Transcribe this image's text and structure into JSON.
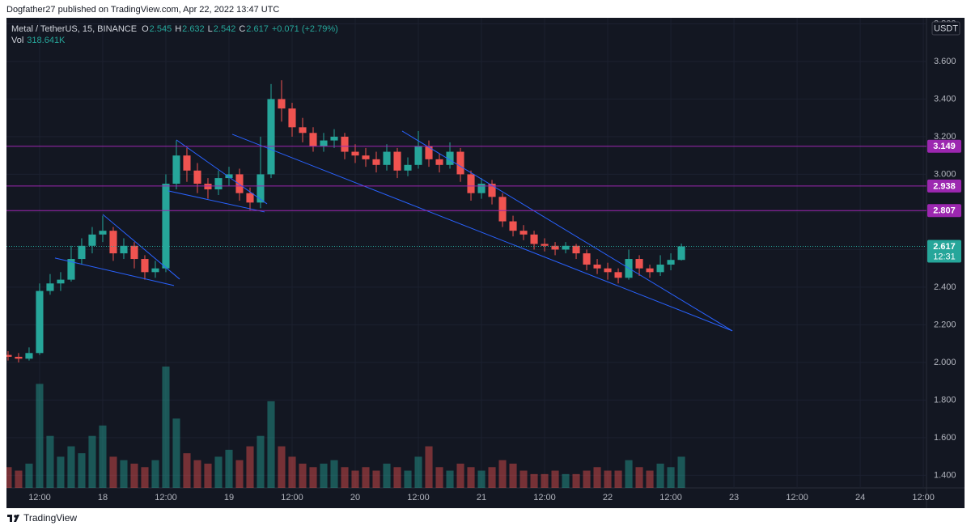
{
  "header": {
    "published": "Dogfather27 published on TradingView.com, Apr 22, 2022 13:47 UTC"
  },
  "footer": {
    "brand": "TradingView"
  },
  "chart_data": {
    "type": "candlestick",
    "symbol": "Metal / TetherUS, 15, BINANCE",
    "legend": {
      "labels": [
        "O",
        "H",
        "L",
        "C"
      ],
      "values": [
        2.545,
        2.632,
        2.542,
        2.617
      ],
      "change": "+0.071 (+2.79%)"
    },
    "volume_label": "Vol",
    "volume_value": "318.641K",
    "currency": "USDT",
    "x": [
      6,
      8,
      10,
      12,
      14,
      16,
      18,
      20,
      22,
      24,
      26,
      28,
      30,
      32,
      34,
      36,
      38,
      40,
      42,
      44,
      46,
      48,
      50,
      52,
      54,
      56,
      58,
      60,
      62,
      64,
      66,
      68,
      70,
      72,
      74,
      76,
      78,
      80,
      82,
      84,
      86,
      88,
      90,
      92,
      94,
      96,
      98,
      100,
      102,
      104,
      106,
      108,
      110,
      112,
      114,
      116,
      118,
      120,
      122,
      124,
      126,
      128,
      130,
      132,
      134
    ],
    "open": [
      2.04,
      2.03,
      2.02,
      2.05,
      2.38,
      2.42,
      2.44,
      2.55,
      2.62,
      2.68,
      2.7,
      2.58,
      2.62,
      2.55,
      2.48,
      2.5,
      2.95,
      3.1,
      3.02,
      2.95,
      2.92,
      2.98,
      3.0,
      2.9,
      2.85,
      3.0,
      3.4,
      3.35,
      3.25,
      3.22,
      3.15,
      3.18,
      3.2,
      3.12,
      3.1,
      3.08,
      3.05,
      3.12,
      3.02,
      3.05,
      3.15,
      3.08,
      3.05,
      3.12,
      3.0,
      2.9,
      2.95,
      2.88,
      2.75,
      2.7,
      2.68,
      2.63,
      2.62,
      2.6,
      2.62,
      2.58,
      2.52,
      2.5,
      2.48,
      2.45,
      2.55,
      2.5,
      2.48,
      2.52,
      2.545
    ],
    "high": [
      2.06,
      2.05,
      2.08,
      2.42,
      2.47,
      2.48,
      2.62,
      2.66,
      2.72,
      2.78,
      2.72,
      2.66,
      2.64,
      2.57,
      2.54,
      3.0,
      3.18,
      3.14,
      3.06,
      2.98,
      3.02,
      3.04,
      3.03,
      2.93,
      3.2,
      3.48,
      3.5,
      3.38,
      3.3,
      3.25,
      3.22,
      3.24,
      3.22,
      3.16,
      3.14,
      3.12,
      3.16,
      3.14,
      3.09,
      3.23,
      3.18,
      3.11,
      3.17,
      3.14,
      3.02,
      2.98,
      2.97,
      2.9,
      2.78,
      2.73,
      2.7,
      2.66,
      2.64,
      2.64,
      2.63,
      2.6,
      2.55,
      2.53,
      2.5,
      2.6,
      2.57,
      2.52,
      2.57,
      2.58,
      2.632
    ],
    "low": [
      2.01,
      2.0,
      2.01,
      2.04,
      2.36,
      2.38,
      2.43,
      2.52,
      2.58,
      2.64,
      2.54,
      2.55,
      2.5,
      2.44,
      2.45,
      2.48,
      2.92,
      2.96,
      2.9,
      2.87,
      2.89,
      2.94,
      2.86,
      2.81,
      2.82,
      2.98,
      3.28,
      3.2,
      3.17,
      3.12,
      3.12,
      3.14,
      3.08,
      3.06,
      3.04,
      3.01,
      3.02,
      2.98,
      2.99,
      3.03,
      3.04,
      3.01,
      3.03,
      2.96,
      2.86,
      2.87,
      2.84,
      2.72,
      2.67,
      2.65,
      2.6,
      2.59,
      2.57,
      2.58,
      2.55,
      2.49,
      2.47,
      2.44,
      2.42,
      2.44,
      2.46,
      2.45,
      2.46,
      2.49,
      2.542
    ],
    "close": [
      2.03,
      2.02,
      2.05,
      2.38,
      2.42,
      2.44,
      2.55,
      2.62,
      2.68,
      2.7,
      2.58,
      2.62,
      2.55,
      2.48,
      2.5,
      2.95,
      3.1,
      3.02,
      2.95,
      2.92,
      2.98,
      3.0,
      2.9,
      2.85,
      3.0,
      3.4,
      3.35,
      3.25,
      3.22,
      3.15,
      3.18,
      3.2,
      3.12,
      3.1,
      3.08,
      3.05,
      3.12,
      3.02,
      3.05,
      3.15,
      3.08,
      3.05,
      3.12,
      3.0,
      2.9,
      2.95,
      2.88,
      2.75,
      2.7,
      2.68,
      2.63,
      2.62,
      2.6,
      2.62,
      2.58,
      2.52,
      2.5,
      2.48,
      2.45,
      2.55,
      2.5,
      2.48,
      2.52,
      2.545,
      2.617
    ],
    "volume": [
      600,
      500,
      700,
      3000,
      1500,
      900,
      1200,
      1000,
      1500,
      1800,
      900,
      800,
      700,
      600,
      800,
      3500,
      2000,
      1000,
      800,
      700,
      900,
      1100,
      800,
      1200,
      1500,
      2500,
      1200,
      900,
      700,
      600,
      700,
      800,
      600,
      500,
      600,
      500,
      700,
      600,
      500,
      900,
      1200,
      600,
      500,
      700,
      600,
      500,
      600,
      800,
      700,
      500,
      400,
      400,
      500,
      400,
      400,
      500,
      600,
      500,
      500,
      800,
      600,
      500,
      700,
      600,
      900
    ],
    "up_color": "#26a69a",
    "down_color": "#ef5350",
    "xlim": [
      5.7,
      180.6
    ],
    "ylim": [
      1.333,
      3.832
    ],
    "xticks": [
      {
        "value": 12,
        "label": "12:00"
      },
      {
        "value": 24,
        "label": "18"
      },
      {
        "value": 36,
        "label": "12:00"
      },
      {
        "value": 48,
        "label": "19"
      },
      {
        "value": 60,
        "label": "12:00"
      },
      {
        "value": 72,
        "label": "20"
      },
      {
        "value": 84,
        "label": "12:00"
      },
      {
        "value": 96,
        "label": "21"
      },
      {
        "value": 108,
        "label": "12:00"
      },
      {
        "value": 120,
        "label": "22"
      },
      {
        "value": 132,
        "label": "12:00"
      },
      {
        "value": 144,
        "label": "23"
      },
      {
        "value": 156,
        "label": "12:00"
      },
      {
        "value": 168,
        "label": "24"
      },
      {
        "value": 180,
        "label": "12:00"
      }
    ],
    "yticks": [
      {
        "value": 1.4,
        "label": "1.400"
      },
      {
        "value": 1.6,
        "label": "1.600"
      },
      {
        "value": 1.8,
        "label": "1.800"
      },
      {
        "value": 2.0,
        "label": "2.000"
      },
      {
        "value": 2.2,
        "label": "2.200"
      },
      {
        "value": 2.4,
        "label": "2.400"
      },
      {
        "value": 2.6,
        "label": "2.600"
      },
      {
        "value": 2.8,
        "label": "2.800"
      },
      {
        "value": 3.0,
        "label": "3.000"
      },
      {
        "value": 3.2,
        "label": "3.200"
      },
      {
        "value": 3.4,
        "label": "3.400"
      },
      {
        "value": 3.6,
        "label": "3.600"
      },
      {
        "value": 3.8,
        "label": "3.800"
      }
    ],
    "grid": true,
    "levels": [
      {
        "value": 3.149,
        "color": "#9c27b0"
      },
      {
        "value": 2.938,
        "color": "#9c27b0"
      },
      {
        "value": 2.807,
        "color": "#9c27b0"
      }
    ],
    "last_price": {
      "value": 2.617,
      "countdown": "12:31",
      "color": "#26a69a"
    },
    "trendline_color": "#2962ff",
    "trendlines": [
      {
        "x": [
          14.92,
          37.54
        ],
        "y": [
          2.555,
          2.409
        ]
      },
      {
        "x": [
          24.0,
          38.62
        ],
        "y": [
          2.787,
          2.443
        ]
      },
      {
        "x": [
          36.46,
          54.77
        ],
        "y": [
          2.912,
          2.8
        ]
      },
      {
        "x": [
          38.0,
          55.23
        ],
        "y": [
          3.183,
          2.843
        ]
      },
      {
        "x": [
          48.62,
          143.69
        ],
        "y": [
          3.213,
          2.168
        ]
      },
      {
        "x": [
          80.92,
          143.69
        ],
        "y": [
          3.23,
          2.168
        ]
      }
    ]
  }
}
